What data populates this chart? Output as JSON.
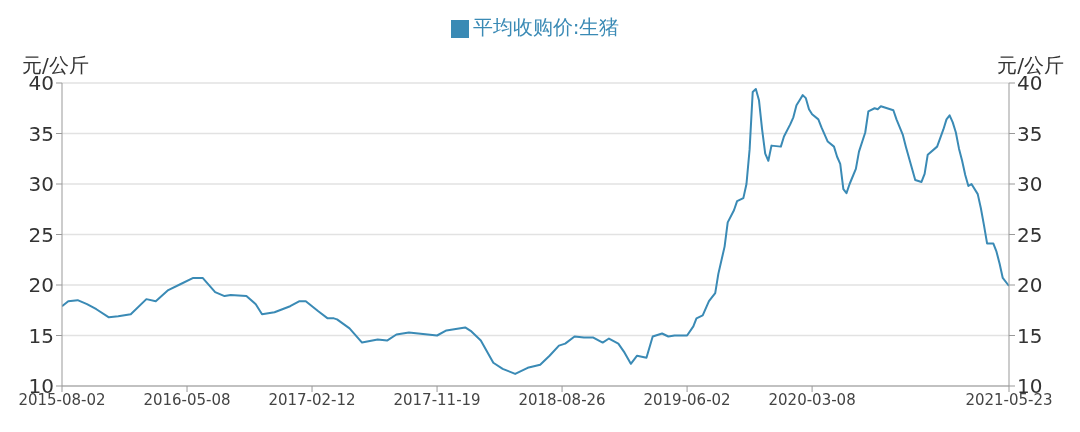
{
  "chart_data": {
    "type": "line",
    "ylabel": "元/公斤",
    "y2label": "元/公斤",
    "legend": "top",
    "grid": "y",
    "marker": "none",
    "line_style": "solid",
    "xlim": [
      "2015-08-02",
      "2021-05-23"
    ],
    "xticks": [
      "2015-08-02",
      "2016-05-08",
      "2017-02-12",
      "2017-11-19",
      "2018-08-26",
      "2019-06-02",
      "2020-03-08",
      "2021-05-23"
    ],
    "ylim": [
      10,
      40
    ],
    "yticks": [
      10,
      15,
      20,
      25,
      30,
      35,
      40
    ],
    "y2lim": [
      10,
      40
    ],
    "y2ticks": [
      10,
      15,
      20,
      25,
      30,
      35,
      40
    ],
    "x": [
      "2015-08-02",
      "2015-08-16",
      "2015-09-06",
      "2015-09-27",
      "2015-10-18",
      "2015-11-15",
      "2015-12-06",
      "2016-01-03",
      "2016-02-07",
      "2016-02-28",
      "2016-03-27",
      "2016-04-24",
      "2016-05-22",
      "2016-06-12",
      "2016-07-10",
      "2016-07-31",
      "2016-08-14",
      "2016-09-18",
      "2016-10-09",
      "2016-10-23",
      "2016-11-20",
      "2016-12-25",
      "2017-01-15",
      "2017-01-29",
      "2017-02-26",
      "2017-03-19",
      "2017-04-02",
      "2017-04-09",
      "2017-05-07",
      "2017-06-04",
      "2017-07-09",
      "2017-07-30",
      "2017-08-20",
      "2017-09-17",
      "2017-11-19",
      "2017-12-10",
      "2018-01-21",
      "2018-02-04",
      "2018-02-25",
      "2018-03-25",
      "2018-04-15",
      "2018-05-13",
      "2018-06-10",
      "2018-07-08",
      "2018-07-29",
      "2018-08-19",
      "2018-09-02",
      "2018-09-23",
      "2018-10-14",
      "2018-11-04",
      "2018-11-25",
      "2018-12-09",
      "2018-12-30",
      "2019-01-13",
      "2019-01-27",
      "2019-02-10",
      "2019-03-03",
      "2019-03-17",
      "2019-04-07",
      "2019-04-21",
      "2019-05-05",
      "2019-06-02",
      "2019-06-16",
      "2019-06-23",
      "2019-07-07",
      "2019-07-21",
      "2019-08-04",
      "2019-08-11",
      "2019-08-25",
      "2019-09-01",
      "2019-09-15",
      "2019-09-22",
      "2019-10-06",
      "2019-10-13",
      "2019-10-20",
      "2019-10-27",
      "2019-11-03",
      "2019-11-10",
      "2019-11-17",
      "2019-11-24",
      "2019-12-01",
      "2019-12-08",
      "2019-12-29",
      "2020-01-05",
      "2020-01-19",
      "2020-01-26",
      "2020-02-02",
      "2020-02-09",
      "2020-02-16",
      "2020-02-23",
      "2020-03-01",
      "2020-03-08",
      "2020-03-22",
      "2020-03-29",
      "2020-04-12",
      "2020-04-26",
      "2020-05-03",
      "2020-05-10",
      "2020-05-17",
      "2020-05-24",
      "2020-05-31",
      "2020-06-14",
      "2020-06-21",
      "2020-07-05",
      "2020-07-12",
      "2020-07-26",
      "2020-08-02",
      "2020-08-09",
      "2020-08-23",
      "2020-09-06",
      "2020-09-13",
      "2020-09-27",
      "2020-10-04",
      "2020-10-25",
      "2020-11-08",
      "2020-11-15",
      "2020-11-22",
      "2020-12-13",
      "2020-12-27",
      "2021-01-03",
      "2021-01-10",
      "2021-01-17",
      "2021-01-24",
      "2021-01-31",
      "2021-02-07",
      "2021-02-14",
      "2021-02-21",
      "2021-02-28",
      "2021-03-14",
      "2021-03-21",
      "2021-03-28",
      "2021-04-04",
      "2021-04-11",
      "2021-04-18",
      "2021-04-25",
      "2021-05-02",
      "2021-05-09",
      "2021-05-23"
    ],
    "series": [
      {
        "name": "平均收购价:生猪",
        "color": "#3a8ab5",
        "values": [
          17.9,
          18.4,
          18.5,
          18.1,
          17.6,
          16.8,
          16.9,
          17.1,
          18.6,
          18.4,
          19.5,
          20.1,
          20.7,
          20.7,
          19.3,
          18.9,
          19.0,
          18.9,
          18.1,
          17.1,
          17.3,
          17.9,
          18.4,
          18.4,
          17.4,
          16.7,
          16.7,
          16.6,
          15.7,
          14.3,
          14.6,
          14.5,
          15.1,
          15.3,
          15.0,
          15.5,
          15.8,
          15.4,
          14.5,
          12.3,
          11.7,
          11.2,
          11.8,
          12.1,
          13.0,
          14.0,
          14.2,
          14.9,
          14.8,
          14.8,
          14.3,
          14.7,
          14.2,
          13.3,
          12.2,
          13.0,
          12.8,
          14.9,
          15.2,
          14.9,
          15.0,
          15.0,
          15.9,
          16.7,
          17.0,
          18.4,
          19.2,
          21.1,
          23.8,
          26.2,
          27.4,
          28.3,
          28.6,
          30.0,
          33.4,
          39.1,
          39.4,
          38.3,
          35.4,
          33.0,
          32.3,
          33.8,
          33.7,
          34.7,
          35.9,
          36.6,
          37.8,
          38.3,
          38.8,
          38.5,
          37.4,
          36.9,
          36.4,
          35.6,
          34.2,
          33.7,
          32.7,
          32.0,
          29.5,
          29.1,
          30.0,
          31.5,
          33.2,
          35.1,
          37.2,
          37.5,
          37.4,
          37.7,
          37.5,
          37.3,
          36.4,
          34.9,
          33.7,
          30.4,
          30.2,
          31.0,
          32.9,
          33.7,
          35.4,
          36.4,
          36.8,
          36.1,
          35.1,
          33.5,
          32.3,
          30.9,
          29.8,
          30.0,
          29.0,
          27.6,
          25.9,
          24.1,
          24.1,
          24.1,
          23.3,
          22.1,
          20.7,
          19.9
        ]
      }
    ]
  }
}
